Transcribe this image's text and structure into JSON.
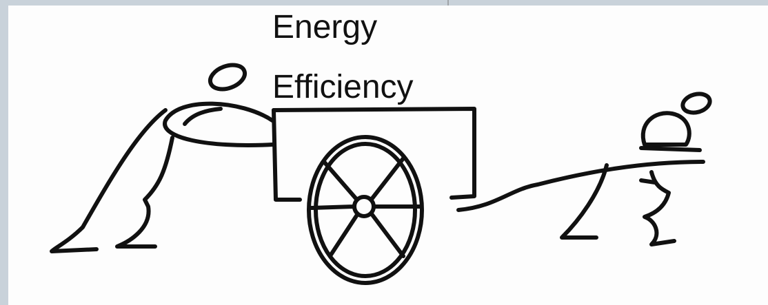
{
  "title": {
    "lines": [
      "Energy",
      "Efficiency"
    ]
  }
}
